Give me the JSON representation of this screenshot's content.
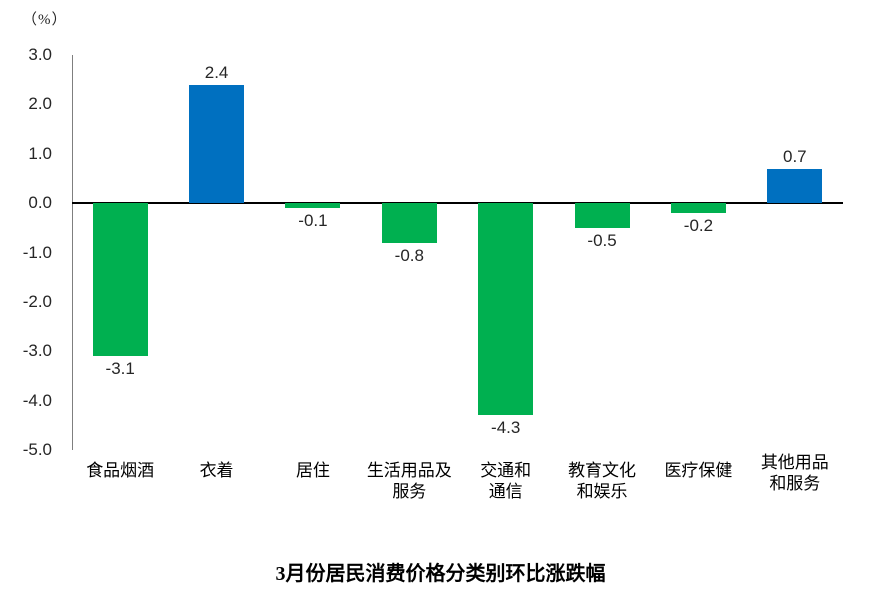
{
  "chart_data": {
    "type": "bar",
    "title": "3月份居民消费价格分类别环比涨跌幅",
    "unit_label": "（%）",
    "categories": [
      "食品烟酒",
      "衣着",
      "居住",
      "生活用品及服务",
      "交通和通信",
      "教育文化和娱乐",
      "医疗保健",
      "其他用品和服务"
    ],
    "category_lines": [
      [
        "食品烟酒"
      ],
      [
        "衣着"
      ],
      [
        "居住"
      ],
      [
        "生活用品及",
        "服务"
      ],
      [
        "交通和",
        "通信"
      ],
      [
        "教育文化",
        "和娱乐"
      ],
      [
        "医疗保健"
      ],
      [
        "其他用品",
        "和服务"
      ]
    ],
    "values": [
      -3.1,
      2.4,
      -0.1,
      -0.8,
      -4.3,
      -0.5,
      -0.2,
      0.7
    ],
    "value_labels": [
      "-3.1",
      "2.4",
      "-0.1",
      "-0.8",
      "-4.3",
      "-0.5",
      "-0.2",
      "0.7"
    ],
    "y_ticks": [
      3.0,
      2.0,
      1.0,
      0.0,
      -1.0,
      -2.0,
      -3.0,
      -4.0,
      -5.0
    ],
    "y_tick_labels": [
      "3.0",
      "2.0",
      "1.0",
      "0.0",
      "-1.0",
      "-2.0",
      "-3.0",
      "-4.0",
      "-5.0"
    ],
    "ylim": [
      -5.0,
      3.0
    ],
    "xlabel": "",
    "ylabel": "（%）",
    "grid": false,
    "legend": false,
    "colors": {
      "positive": "#0070C0",
      "negative": "#00B050",
      "axis_line": "#7F7F7F",
      "zero_line": "#000000",
      "text": "#262626"
    }
  }
}
